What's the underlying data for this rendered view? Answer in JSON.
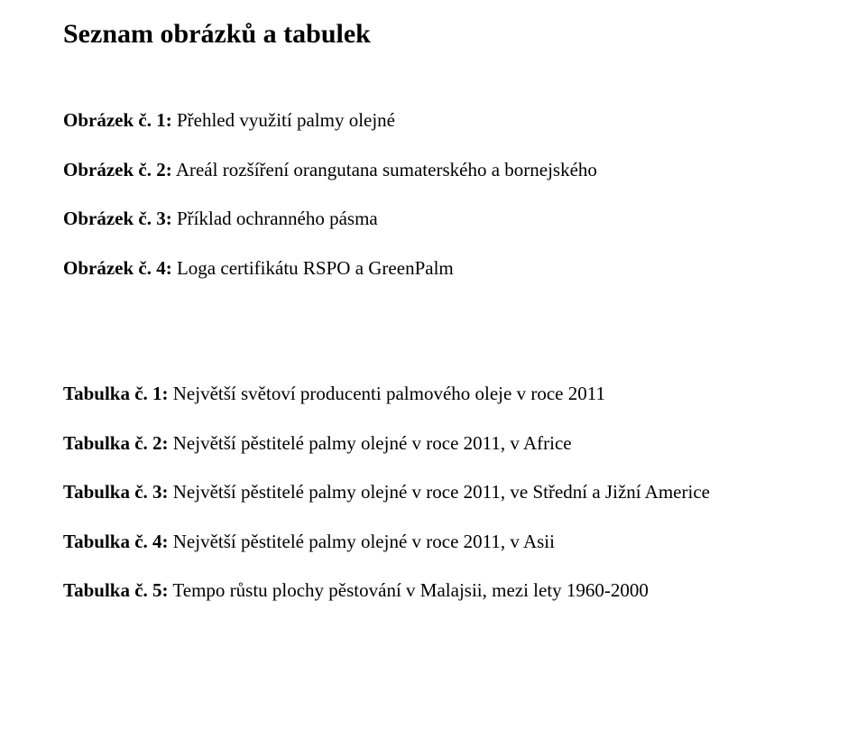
{
  "heading": "Seznam obrázků a tabulek",
  "figures": [
    {
      "label": "Obrázek č. 1:",
      "text": " Přehled využití palmy olejné"
    },
    {
      "label": "Obrázek č. 2:",
      "text": " Areál rozšíření orangutana sumaterského a bornejského"
    },
    {
      "label": "Obrázek č. 3:",
      "text": " Příklad ochranného pásma"
    },
    {
      "label": "Obrázek č. 4:",
      "text": " Loga certifikátu RSPO a GreenPalm"
    }
  ],
  "tables": [
    {
      "label": "Tabulka č. 1:",
      "text": " Největší světoví producenti palmového oleje v roce 2011",
      "justify": false
    },
    {
      "label": "Tabulka č. 2:",
      "text": " Největší pěstitelé palmy olejné v roce 2011, v Africe",
      "justify": false
    },
    {
      "label": "Tabulka č. 3:",
      "text": " Největší pěstitelé palmy olejné v roce 2011, ve Střední a Jižní Americe",
      "justify": true
    },
    {
      "label": "Tabulka č. 4:",
      "text": " Největší pěstitelé palmy olejné v roce 2011, v Asii",
      "justify": false
    },
    {
      "label": "Tabulka č. 5:",
      "text": " Tempo růstu plochy pěstování v Malajsii, mezi lety 1960-2000",
      "justify": false
    }
  ]
}
